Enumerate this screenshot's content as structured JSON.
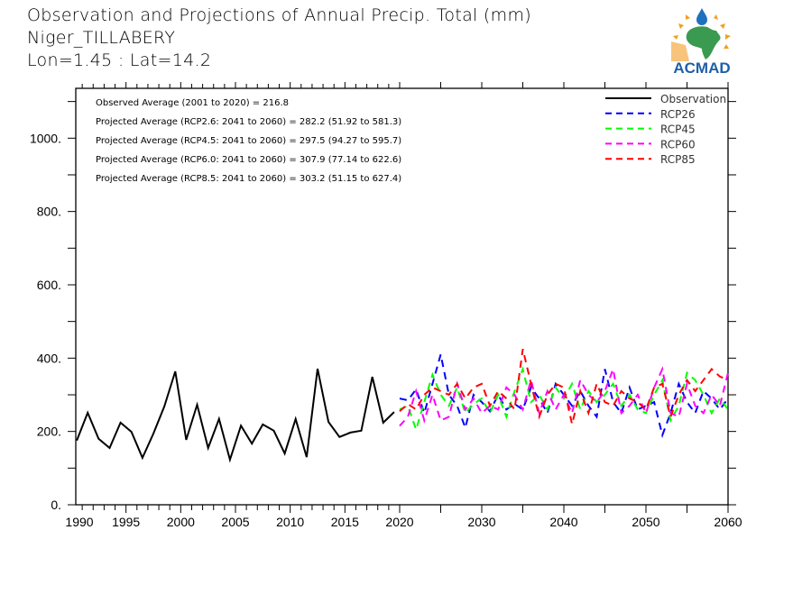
{
  "header": {
    "title": "Observation and Projections of Annual Precip. Total (mm)",
    "region": "Niger_TILLABERY",
    "coords": "Lon=1.45 : Lat=14.2"
  },
  "logo": {
    "text": "ACMAD",
    "colors": {
      "text": "#1f5fa8",
      "africa": "#3a9a50",
      "sun": "#f0a020",
      "drop": "#2070c0"
    }
  },
  "chart_data": {
    "type": "line",
    "title": "Observation and Projections of Annual Precip. Total (mm)",
    "xlabel": "",
    "ylabel": "",
    "ylim": [
      0,
      1140
    ],
    "yticks": [
      0,
      200,
      400,
      600,
      800,
      1000
    ],
    "ytick_labels": [
      "0.",
      "200.",
      "400.",
      "600.",
      "800.",
      "1000."
    ],
    "xticks_obs": [
      1990,
      1995,
      2000,
      2005,
      2010,
      2015,
      2020
    ],
    "xticks_proj": [
      2030,
      2040,
      2050,
      2060
    ],
    "xtick_labels": [
      "1990",
      "1995",
      "2000",
      "2005",
      "2010",
      "2015",
      "2020",
      "2030",
      "2040",
      "2050",
      "2060"
    ],
    "xlim_obs": [
      1990,
      2020
    ],
    "xlim_proj": [
      2020,
      2060
    ],
    "grid": false,
    "legend_position": "top-right",
    "annotations": [
      "Observed Average (2001 to 2020) = 216.8",
      "Projected Average (RCP2.6: 2041 to 2060) = 282.2 (51.92 to 581.3)",
      "Projected Average (RCP4.5: 2041 to 2060) = 297.5 (94.27 to 595.7)",
      "Projected Average (RCP6.0: 2041 to 2060) = 307.9 (77.14 to 622.6)",
      "Projected Average (RCP8.5: 2041 to 2060) = 303.2 (51.15 to 627.4)"
    ],
    "series": [
      {
        "name": "Observation",
        "color": "#000000",
        "style": "solid",
        "x": [
          1990,
          1991,
          1992,
          1993,
          1994,
          1995,
          1996,
          1997,
          1998,
          1999,
          2000,
          2001,
          2002,
          2003,
          2004,
          2005,
          2006,
          2007,
          2008,
          2009,
          2010,
          2011,
          2012,
          2013,
          2014,
          2015,
          2016,
          2017,
          2018,
          2019
        ],
        "values": [
          175,
          251,
          180,
          155,
          224,
          199,
          128,
          194,
          268,
          364,
          177,
          273,
          155,
          234,
          123,
          216,
          167,
          219,
          202,
          140,
          234,
          130,
          371,
          226,
          185,
          197,
          202,
          349,
          224,
          253
        ]
      },
      {
        "name": "RCP26",
        "color": "#0000ff",
        "style": "dashed",
        "x": [
          2020,
          2021,
          2022,
          2023,
          2024,
          2025,
          2026,
          2027,
          2028,
          2029,
          2030,
          2031,
          2032,
          2033,
          2034,
          2035,
          2036,
          2037,
          2038,
          2039,
          2040,
          2041,
          2042,
          2043,
          2044,
          2045,
          2046,
          2047,
          2048,
          2049,
          2050,
          2051,
          2052,
          2053,
          2054,
          2055,
          2056,
          2057,
          2058,
          2059,
          2060
        ],
        "values": [
          290,
          285,
          315,
          250,
          330,
          410,
          300,
          270,
          210,
          300,
          280,
          255,
          300,
          260,
          275,
          260,
          320,
          290,
          250,
          330,
          300,
          270,
          310,
          270,
          240,
          370,
          280,
          250,
          320,
          260,
          270,
          280,
          190,
          250,
          330,
          280,
          250,
          310,
          290,
          260,
          290
        ]
      },
      {
        "name": "RCP45",
        "color": "#00ff00",
        "style": "dashed",
        "x": [
          2020,
          2021,
          2022,
          2023,
          2024,
          2025,
          2026,
          2027,
          2028,
          2029,
          2030,
          2031,
          2032,
          2033,
          2034,
          2035,
          2036,
          2037,
          2038,
          2039,
          2040,
          2041,
          2042,
          2043,
          2044,
          2045,
          2046,
          2047,
          2048,
          2049,
          2050,
          2051,
          2052,
          2053,
          2054,
          2055,
          2056,
          2057,
          2058,
          2059,
          2060
        ],
        "values": [
          260,
          270,
          205,
          280,
          355,
          300,
          270,
          320,
          250,
          275,
          290,
          250,
          300,
          240,
          310,
          370,
          280,
          300,
          260,
          320,
          290,
          330,
          260,
          310,
          280,
          300,
          330,
          270,
          300,
          260,
          250,
          300,
          340,
          230,
          270,
          360,
          340,
          300,
          250,
          290,
          260
        ]
      },
      {
        "name": "RCP60",
        "color": "#ff00ff",
        "style": "dashed",
        "x": [
          2020,
          2021,
          2022,
          2023,
          2024,
          2025,
          2026,
          2027,
          2028,
          2029,
          2030,
          2031,
          2032,
          2033,
          2034,
          2035,
          2036,
          2037,
          2038,
          2039,
          2040,
          2041,
          2042,
          2043,
          2044,
          2045,
          2046,
          2047,
          2048,
          2049,
          2050,
          2051,
          2052,
          2053,
          2054,
          2055,
          2056,
          2057,
          2058,
          2059,
          2060
        ],
        "values": [
          215,
          240,
          310,
          230,
          300,
          230,
          240,
          330,
          260,
          290,
          250,
          270,
          260,
          320,
          300,
          260,
          340,
          250,
          310,
          260,
          300,
          250,
          340,
          300,
          280,
          310,
          370,
          250,
          270,
          300,
          250,
          320,
          370,
          250,
          240,
          330,
          270,
          250,
          300,
          270,
          360
        ]
      },
      {
        "name": "RCP85",
        "color": "#ff0000",
        "style": "dashed",
        "x": [
          2020,
          2021,
          2022,
          2023,
          2024,
          2025,
          2026,
          2027,
          2028,
          2029,
          2030,
          2031,
          2032,
          2033,
          2034,
          2035,
          2036,
          2037,
          2038,
          2039,
          2040,
          2041,
          2042,
          2043,
          2044,
          2045,
          2046,
          2047,
          2048,
          2049,
          2050,
          2051,
          2052,
          2053,
          2054,
          2055,
          2056,
          2057,
          2058,
          2059,
          2060
        ],
        "values": [
          255,
          275,
          260,
          300,
          320,
          310,
          300,
          330,
          290,
          320,
          330,
          270,
          310,
          290,
          260,
          425,
          330,
          240,
          300,
          330,
          320,
          220,
          310,
          250,
          330,
          280,
          270,
          310,
          290,
          280,
          260,
          320,
          330,
          240,
          300,
          340,
          310,
          340,
          370,
          350,
          340
        ]
      }
    ]
  }
}
